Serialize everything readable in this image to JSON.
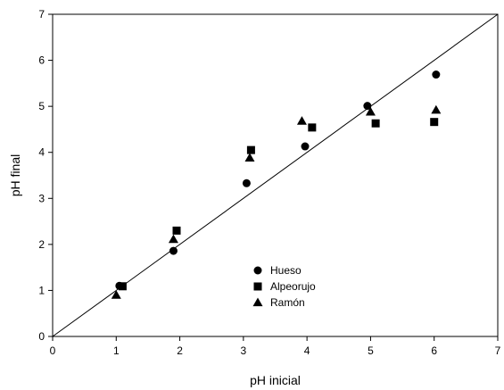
{
  "chart_data": {
    "type": "scatter",
    "title": "",
    "xlabel": "pH inicial",
    "ylabel": "pH final",
    "xlim": [
      0,
      7
    ],
    "ylim": [
      0,
      7
    ],
    "xticks": [
      0,
      1,
      2,
      3,
      4,
      5,
      6,
      7
    ],
    "yticks": [
      0,
      1,
      2,
      3,
      4,
      5,
      6,
      7
    ],
    "grid": false,
    "legend_position": "lower-center",
    "reference_line": {
      "from": [
        0,
        0
      ],
      "to": [
        7,
        7
      ]
    },
    "series": [
      {
        "name": "Hueso",
        "marker": "circle",
        "color": "#000000",
        "points": [
          [
            1.05,
            1.1
          ],
          [
            1.9,
            1.86
          ],
          [
            3.05,
            3.33
          ],
          [
            3.97,
            4.13
          ],
          [
            4.95,
            5.01
          ],
          [
            6.03,
            5.69
          ]
        ]
      },
      {
        "name": "Alpeorujo",
        "marker": "square",
        "color": "#000000",
        "points": [
          [
            1.1,
            1.09
          ],
          [
            1.95,
            2.3
          ],
          [
            3.12,
            4.05
          ],
          [
            4.08,
            4.54
          ],
          [
            5.08,
            4.63
          ],
          [
            6.0,
            4.66
          ]
        ]
      },
      {
        "name": "Ramón",
        "marker": "triangle",
        "color": "#000000",
        "points": [
          [
            1.0,
            0.9
          ],
          [
            1.9,
            2.11
          ],
          [
            3.1,
            3.88
          ],
          [
            3.92,
            4.68
          ],
          [
            5.0,
            4.88
          ],
          [
            6.03,
            4.92
          ]
        ]
      }
    ]
  }
}
